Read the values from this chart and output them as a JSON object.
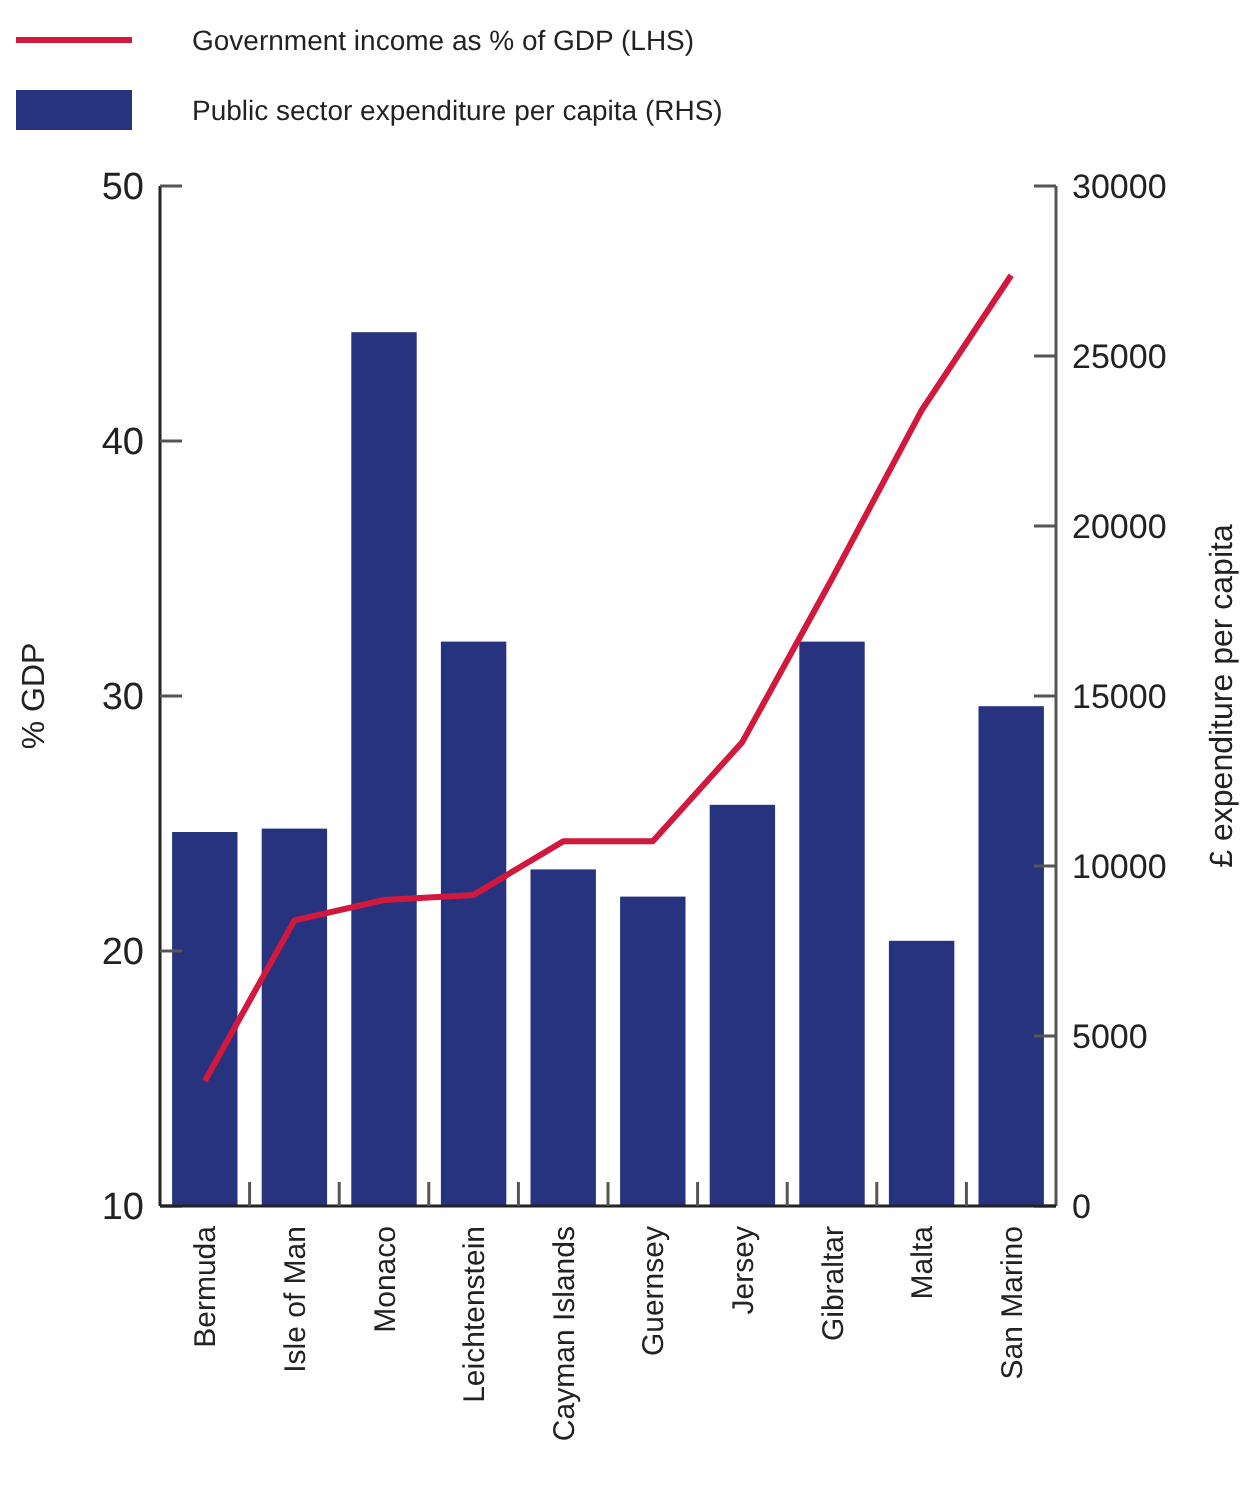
{
  "chart_data": {
    "type": "bar",
    "categories": [
      "Bermuda",
      "Isle of Man",
      "Monaco",
      "Leichtenstein",
      "Cayman Islands",
      "Guernsey",
      "Jersey",
      "Gibraltar",
      "Malta",
      "San Marino"
    ],
    "ylabel": "% GDP",
    "y2label": "£ expenditure per capita",
    "ylim": [
      10,
      50
    ],
    "yticks": [
      10,
      20,
      30,
      40,
      50
    ],
    "y2lim": [
      0,
      30000
    ],
    "y2ticks": [
      0,
      5000,
      10000,
      15000,
      20000,
      25000,
      30000
    ],
    "legend": "top left",
    "grid": false,
    "series": [
      {
        "axis": "y2",
        "name": "Public sector expenditure per capita (RHS)",
        "color": "#283380",
        "values": [
          11000,
          11100,
          25700,
          16600,
          9900,
          9100,
          11800,
          16600,
          7800,
          14700
        ]
      },
      {
        "type": "line",
        "axis": "y",
        "name": "Government income as % of GDP (LHS)",
        "color": "#d2183c",
        "line_style": "solid",
        "marker": "none",
        "values": [
          14.9,
          21.2,
          22.0,
          22.2,
          24.3,
          24.3,
          28.2,
          34.6,
          41.2,
          46.5
        ]
      }
    ]
  }
}
